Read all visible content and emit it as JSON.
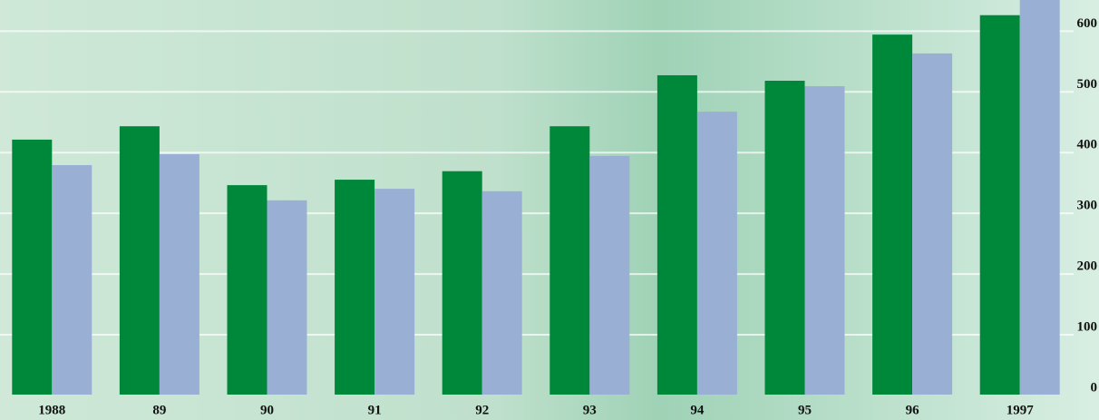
{
  "chart_data": {
    "type": "bar",
    "categories": [
      "1988",
      "89",
      "90",
      "91",
      "92",
      "93",
      "94",
      "95",
      "96",
      "1997"
    ],
    "series": [
      {
        "color": "#00883a",
        "values": [
          420,
          442,
          345,
          354,
          368,
          442,
          526,
          517,
          593,
          625
        ]
      },
      {
        "color": "#99b0d4",
        "values": [
          378,
          396,
          320,
          339,
          335,
          393,
          466,
          508,
          562,
          670
        ]
      }
    ],
    "ylim": [
      0,
      650
    ],
    "yticks": [
      0,
      100,
      200,
      300,
      400,
      500,
      600
    ],
    "grid": true
  }
}
